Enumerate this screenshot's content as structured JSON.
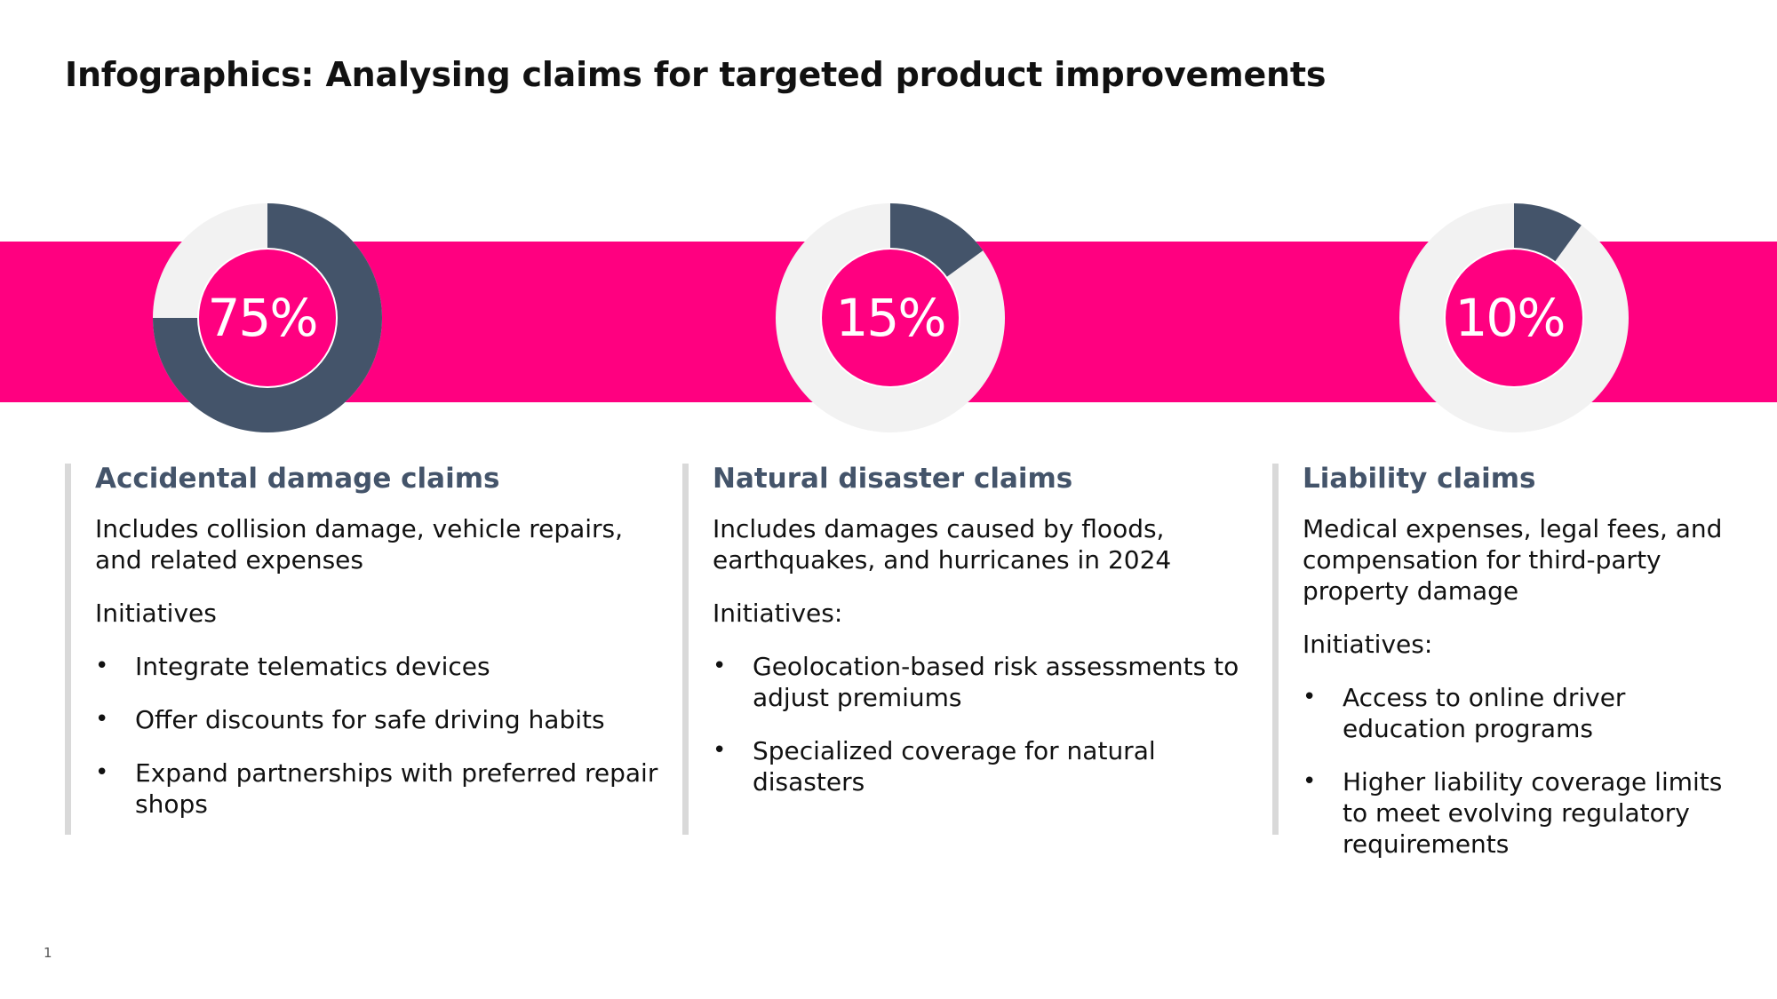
{
  "title": "Infographics: Analysing claims for targeted product improvements",
  "colors": {
    "band": "#ff0080",
    "ring_track": "#f2f2f2",
    "ring_fill": "#44546a",
    "center": "#ff0080",
    "heading": "#44546a",
    "divider": "#d9d9d9"
  },
  "columns": [
    {
      "percent_label": "75%",
      "percent_value": 75,
      "heading": "Accidental damage claims",
      "description": "Includes collision damage, vehicle repairs, and related expenses",
      "initiatives_label": "Initiatives",
      "bullets": [
        "Integrate telematics devices",
        "Offer discounts for safe driving habits",
        "Expand partnerships with preferred repair shops"
      ]
    },
    {
      "percent_label": "15%",
      "percent_value": 15,
      "heading": "Natural disaster claims",
      "description": "Includes damages caused by floods, earthquakes, and hurricanes in 2024",
      "initiatives_label": "Initiatives:",
      "bullets": [
        "Geolocation-based risk assessments to adjust premiums",
        "Specialized coverage for natural disasters"
      ]
    },
    {
      "percent_label": "10%",
      "percent_value": 10,
      "heading": "Liability claims",
      "description": "Medical expenses, legal fees, and compensation for third-party property damage",
      "initiatives_label": "Initiatives:",
      "bullets": [
        "Access to online driver education programs",
        "Higher liability coverage limits to meet evolving regulatory requirements"
      ]
    }
  ],
  "bullet_char": "•",
  "page_number": "1"
}
